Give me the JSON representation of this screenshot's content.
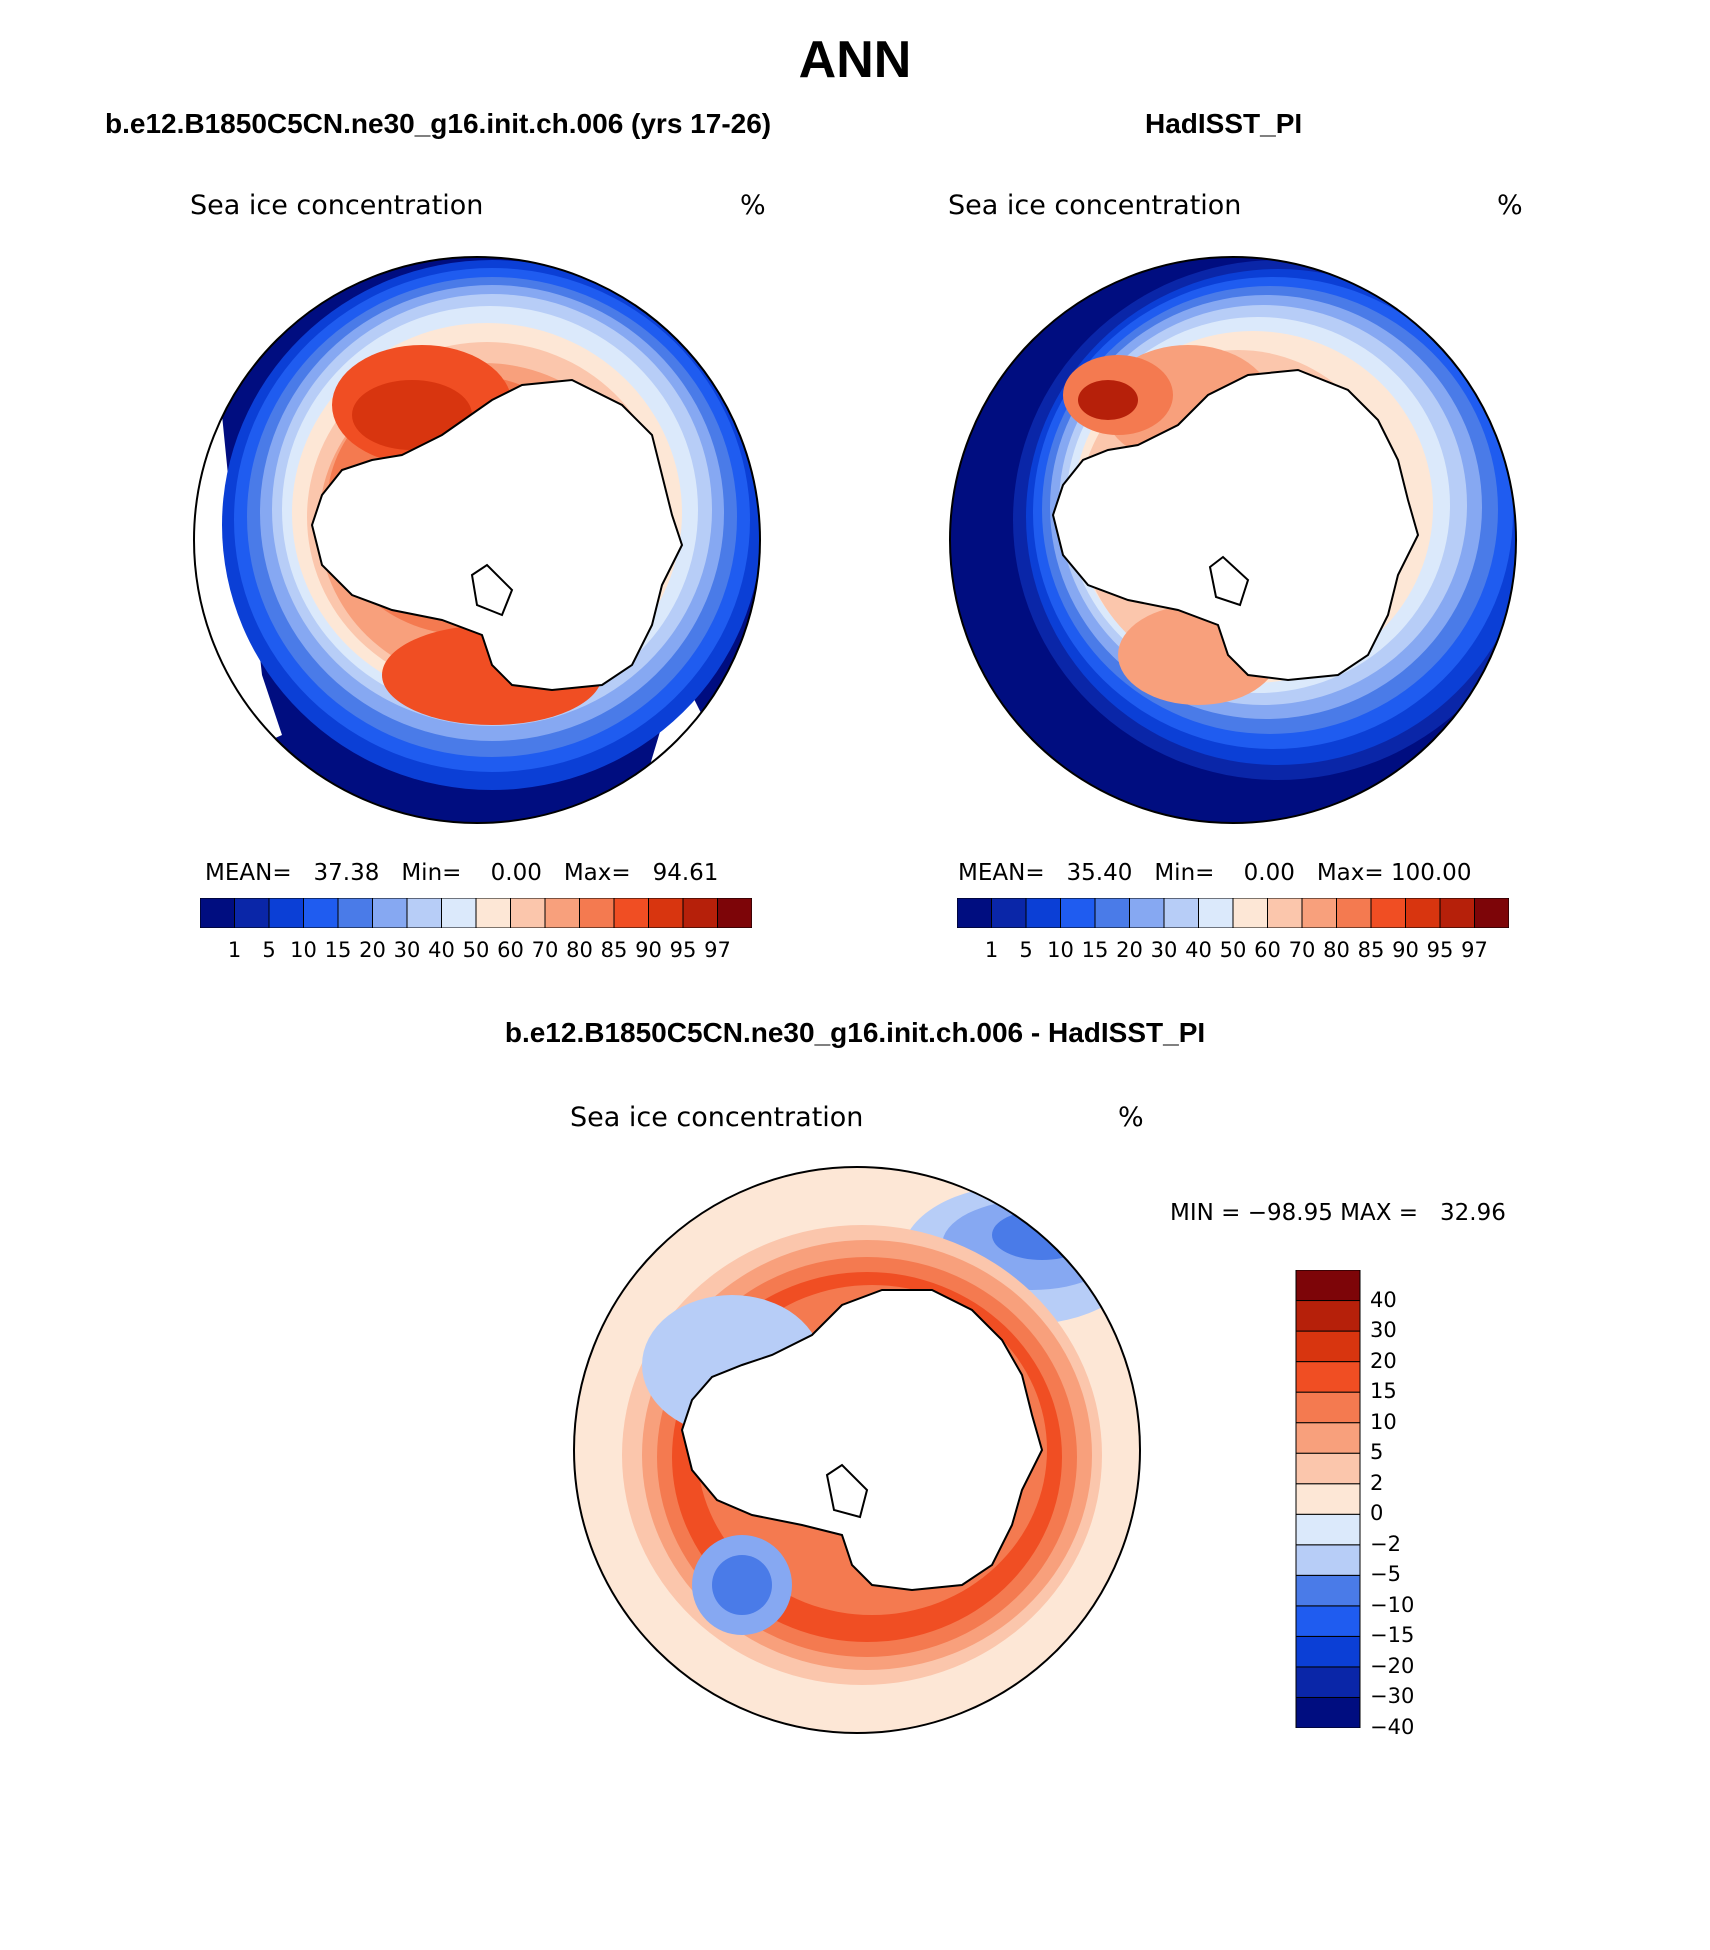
{
  "title": "ANN",
  "panels": [
    {
      "id": "model",
      "title": "b.e12.B1850C5CN.ne30_g16.init.ch.006 (yrs 17-26)",
      "variable": "Sea ice concentration",
      "units": "%",
      "stats": {
        "mean_label": "MEAN=",
        "mean": "37.38",
        "min_label": "Min=",
        "min": "0.00",
        "max_label": "Max=",
        "max": "94.61"
      }
    },
    {
      "id": "obs",
      "title": "HadISST_PI",
      "variable": "Sea ice concentration",
      "units": "%",
      "stats": {
        "mean_label": "MEAN=",
        "mean": "35.40",
        "min_label": "Min=",
        "min": "0.00",
        "max_label": "Max=",
        "max": "100.00"
      }
    },
    {
      "id": "diff",
      "title": "b.e12.B1850C5CN.ne30_g16.init.ch.006 - HadISST_PI",
      "variable": "Sea ice concentration",
      "units": "%",
      "minmax": "MIN = −98.95 MAX =   32.96"
    }
  ],
  "colorbar_abs": {
    "colors": [
      "#000d80",
      "#0a26a8",
      "#0b3fd6",
      "#1f5cf0",
      "#4a7be8",
      "#86a8f2",
      "#b7cdf7",
      "#dbe9fb",
      "#fde7d6",
      "#fbc6ac",
      "#f8a07c",
      "#f47a50",
      "#f04e23",
      "#d8350f",
      "#b6200a",
      "#7d0508"
    ],
    "labels": [
      "1",
      "5",
      "10",
      "15",
      "20",
      "30",
      "40",
      "50",
      "60",
      "70",
      "80",
      "85",
      "90",
      "95",
      "97"
    ]
  },
  "colorbar_diff": {
    "colors": [
      "#000d80",
      "#0a26a8",
      "#0b3fd6",
      "#1f5cf0",
      "#4a7be8",
      "#b7cdf7",
      "#dbe9fb",
      "#fde7d6",
      "#fbc6ac",
      "#f8a07c",
      "#f47a50",
      "#f04e23",
      "#d8350f",
      "#b6200a",
      "#7d0508"
    ],
    "labels": [
      "40",
      "30",
      "20",
      "15",
      "10",
      "5",
      "2",
      "0",
      "−2",
      "−5",
      "−10",
      "−15",
      "−20",
      "−30",
      "−40"
    ]
  }
}
